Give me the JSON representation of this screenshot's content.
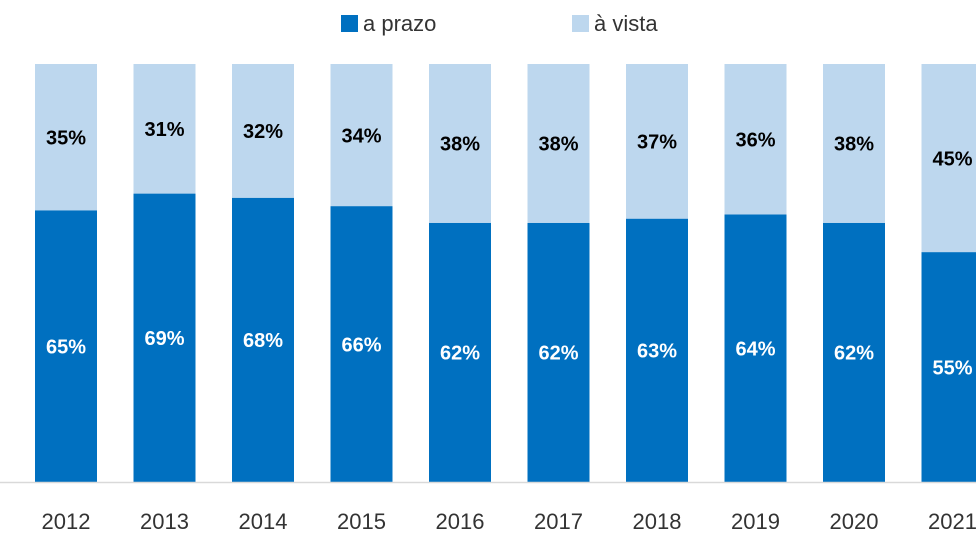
{
  "chart_data": {
    "type": "stacked_bar",
    "categories": [
      "2012",
      "2013",
      "2014",
      "2015",
      "2016",
      "2017",
      "2018",
      "2019",
      "2020",
      "2021"
    ],
    "series": [
      {
        "name": "a prazo",
        "color": "#0070c0",
        "values": [
          65,
          69,
          68,
          66,
          62,
          62,
          63,
          64,
          62,
          55
        ],
        "value_labels": [
          "65%",
          "69%",
          "68%",
          "66%",
          "62%",
          "62%",
          "63%",
          "64%",
          "62%",
          "55%"
        ]
      },
      {
        "name": "à vista",
        "color": "#bdd7ee",
        "values": [
          35,
          31,
          32,
          34,
          38,
          38,
          37,
          36,
          38,
          45
        ],
        "value_labels": [
          "35%",
          "31%",
          "32%",
          "34%",
          "38%",
          "38%",
          "37%",
          "36%",
          "38%",
          "45%"
        ]
      }
    ],
    "ylim": [
      0,
      100
    ],
    "legend": "top"
  }
}
